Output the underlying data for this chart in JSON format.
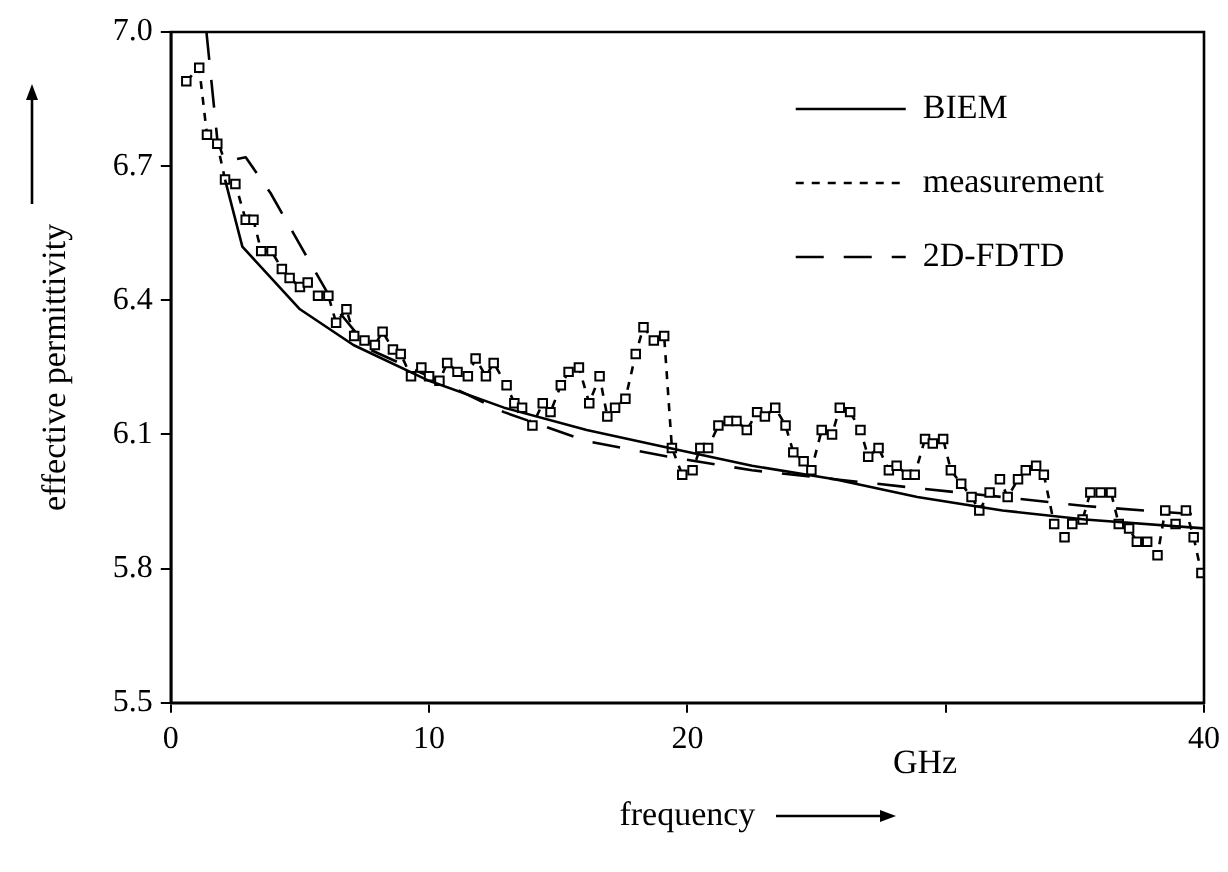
{
  "chart_data": {
    "type": "line",
    "xlabel": "frequency",
    "ylabel": "effective permittivity",
    "annotations": [
      "GHz"
    ],
    "xlim": [
      0,
      40
    ],
    "xticks": [
      0,
      10,
      20,
      {
        "value": 30,
        "label": null
      },
      40
    ],
    "ylim": [
      5.5,
      7.0
    ],
    "yticks": [
      5.5,
      5.8,
      6.1,
      6.4,
      6.7,
      {
        "value": 7.0,
        "label": "7.0"
      }
    ],
    "grid": false,
    "legend": "top right",
    "series": [
      {
        "name": "BIEM",
        "color": "#000000",
        "line_style": "solid",
        "marker": "none",
        "x": [
          2.1,
          2.77,
          5.0,
          7.07,
          10.0,
          12.9,
          16.1,
          19.3,
          22.5,
          25.7,
          28.9,
          32.2,
          35.4,
          40
        ],
        "values": [
          6.67,
          6.52,
          6.38,
          6.3,
          6.22,
          6.16,
          6.11,
          6.07,
          6.03,
          6.0,
          5.96,
          5.93,
          5.91,
          5.89
        ]
      },
      {
        "name": "measurement",
        "color": "#000000",
        "line_style": "dashed",
        "marker": "square",
        "x": [
          0.6,
          1.1,
          1.4,
          1.8,
          2.1,
          2.5,
          2.9,
          3.2,
          3.5,
          3.9,
          4.3,
          4.6,
          5.0,
          5.3,
          5.7,
          6.1,
          6.4,
          6.8,
          7.1,
          7.5,
          7.9,
          8.2,
          8.6,
          8.9,
          9.3,
          9.7,
          10.0,
          10.4,
          10.7,
          11.1,
          11.5,
          11.8,
          12.2,
          12.5,
          13.0,
          13.3,
          13.6,
          14.0,
          14.4,
          14.7,
          15.1,
          15.4,
          15.8,
          16.2,
          16.6,
          16.9,
          17.2,
          17.6,
          18.0,
          18.3,
          18.7,
          19.1,
          19.4,
          19.8,
          20.2,
          20.5,
          20.8,
          21.2,
          21.6,
          21.9,
          22.3,
          22.7,
          23.0,
          23.4,
          23.8,
          24.1,
          24.5,
          24.8,
          25.2,
          25.6,
          25.9,
          26.3,
          26.7,
          27.0,
          27.4,
          27.8,
          28.1,
          28.5,
          28.8,
          29.2,
          29.5,
          29.9,
          30.2,
          30.6,
          31.0,
          31.3,
          31.7,
          32.1,
          32.4,
          32.8,
          33.1,
          33.5,
          33.8,
          34.2,
          34.6,
          34.9,
          35.3,
          35.6,
          36.0,
          36.4,
          36.7,
          37.1,
          37.4,
          37.8,
          38.2,
          38.5,
          38.9,
          39.3,
          39.6,
          39.9
        ],
        "values": [
          6.89,
          6.92,
          6.77,
          6.75,
          6.67,
          6.66,
          6.58,
          6.58,
          6.51,
          6.51,
          6.47,
          6.45,
          6.43,
          6.44,
          6.41,
          6.41,
          6.35,
          6.38,
          6.32,
          6.31,
          6.3,
          6.33,
          6.29,
          6.28,
          6.23,
          6.25,
          6.23,
          6.22,
          6.26,
          6.24,
          6.23,
          6.27,
          6.23,
          6.26,
          6.21,
          6.17,
          6.16,
          6.12,
          6.17,
          6.15,
          6.21,
          6.24,
          6.25,
          6.17,
          6.23,
          6.14,
          6.16,
          6.18,
          6.28,
          6.34,
          6.31,
          6.32,
          6.07,
          6.01,
          6.02,
          6.07,
          6.07,
          6.12,
          6.13,
          6.13,
          6.11,
          6.15,
          6.14,
          6.16,
          6.12,
          6.06,
          6.04,
          6.02,
          6.11,
          6.1,
          6.16,
          6.15,
          6.11,
          6.05,
          6.07,
          6.02,
          6.03,
          6.01,
          6.01,
          6.09,
          6.08,
          6.09,
          6.02,
          5.99,
          5.96,
          5.93,
          5.97,
          6.0,
          5.96,
          6.0,
          6.02,
          6.03,
          6.01,
          5.9,
          5.87,
          5.9,
          5.91,
          5.97,
          5.97,
          5.97,
          5.9,
          5.89,
          5.86,
          5.86,
          5.83,
          5.93,
          5.9,
          5.93,
          5.87,
          5.79
        ]
      },
      {
        "name": "2D-FDTD",
        "color": "#000000",
        "line_style": "dashed",
        "marker": "none",
        "x": [
          1.38,
          1.8,
          2.09,
          2.9,
          3.86,
          5.14,
          6.43,
          7.7,
          10.0,
          12.9,
          16.1,
          19.3,
          22.5,
          25.7,
          28.9,
          32.2,
          35.4,
          40
        ],
        "values": [
          7.0,
          6.76,
          6.71,
          6.72,
          6.64,
          6.51,
          6.38,
          6.29,
          6.23,
          6.15,
          6.085,
          6.05,
          6.02,
          6.0,
          5.98,
          5.96,
          5.94,
          5.92
        ]
      }
    ]
  }
}
